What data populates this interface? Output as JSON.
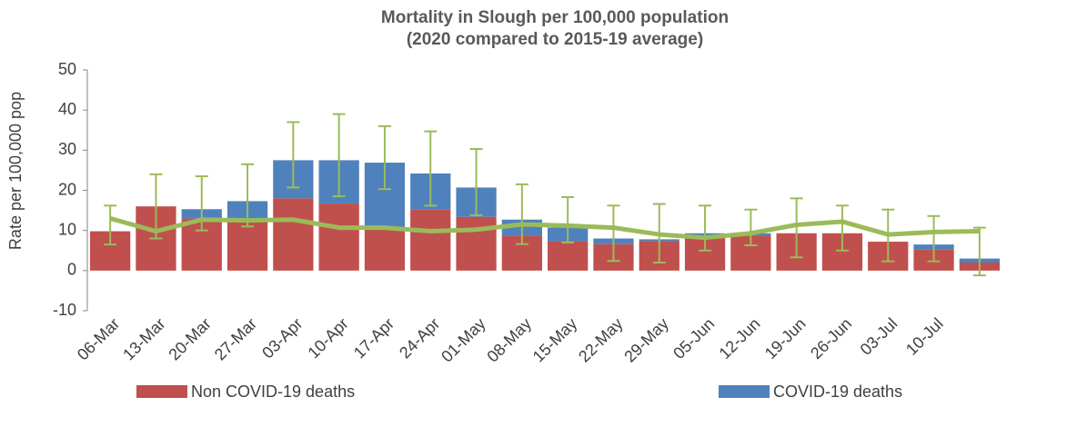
{
  "chart_data": {
    "type": "bar",
    "stacked": true,
    "title": "Mortality in Slough per 100,000 population",
    "subtitle": "(2020 compared to 2015-19 average)",
    "y_label": "Rate per 100,000 pop",
    "categories": [
      "06-Mar",
      "13-Mar",
      "20-Mar",
      "27-Mar",
      "03-Apr",
      "10-Apr",
      "17-Apr",
      "24-Apr",
      "01-May",
      "08-May",
      "15-May",
      "22-May",
      "29-May",
      "05-Jun",
      "12-Jun",
      "19-Jun",
      "26-Jun",
      "03-Jul",
      "10-Jul",
      null
    ],
    "series": [
      {
        "name": "Non COVID-19 deaths",
        "color": "#c0504d",
        "values": [
          9.8,
          16,
          13,
          12.8,
          18,
          16.7,
          10.9,
          15.3,
          13.4,
          8.7,
          7.3,
          6.6,
          7.4,
          8.3,
          8.7,
          9.3,
          9.3,
          7.2,
          5.2,
          2
        ]
      },
      {
        "name": "COVID-19 deaths",
        "color": "#4f81bd",
        "values": [
          0,
          0,
          2.3,
          4.5,
          9.5,
          10.8,
          16,
          8.9,
          7.3,
          4,
          3.4,
          1.4,
          0.4,
          1,
          0.6,
          0,
          0,
          0,
          1.3,
          1
        ]
      },
      {
        "type": "line",
        "color": "#9bbb59",
        "values": [
          13,
          9.8,
          12.7,
          12.5,
          12.7,
          10.7,
          10.7,
          9.8,
          10.2,
          11.5,
          11.2,
          10.7,
          9,
          8.2,
          9.3,
          11.4,
          12.2,
          9,
          9.6,
          9.8
        ]
      }
    ],
    "error_low": [
      6.5,
      8,
      10,
      11,
      20.7,
      18.5,
      20.3,
      16.2,
      13.8,
      6.6,
      7,
      2.4,
      2,
      5,
      6.3,
      3.3,
      5,
      2.3,
      2.3,
      -1.2
    ],
    "error_high": [
      16.2,
      24,
      23.5,
      26.5,
      37,
      39,
      36,
      34.7,
      30.3,
      21.5,
      18.3,
      16.2,
      16.6,
      16.2,
      15.2,
      18,
      16.2,
      15.2,
      13.6,
      10.7
    ],
    "error_color": "#9bbb59",
    "ylim": [
      -10,
      50
    ],
    "yticks": [
      -10,
      0,
      10,
      20,
      30,
      40,
      50
    ],
    "grid": false
  }
}
